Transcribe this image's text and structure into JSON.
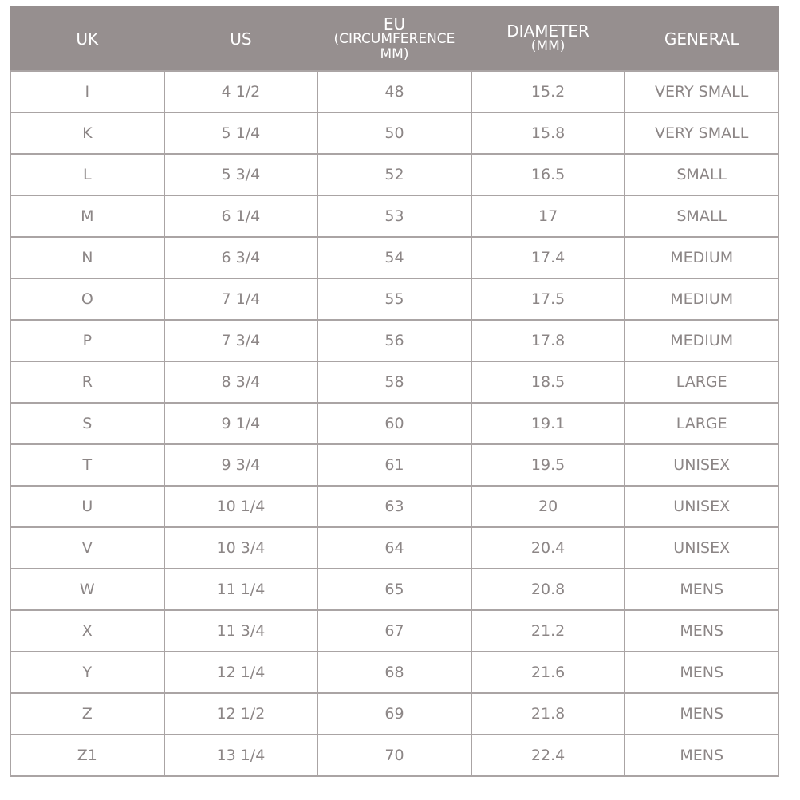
{
  "header": {
    "uk": "UK",
    "us": "US",
    "eu_line1": "EU",
    "eu_line2": "(CIRCUMFERENCE",
    "eu_line3": "MM)",
    "diameter_line1": "DIAMETER",
    "diameter_line2": "(MM)",
    "general": "GENERAL"
  },
  "colors": {
    "header_bg": "#968f8f",
    "header_text": "#ffffff",
    "cell_text": "#8c8686",
    "border": "#aaa4a4"
  },
  "rows": [
    [
      "I",
      "4 1/2",
      "48",
      "15.2",
      "VERY SMALL"
    ],
    [
      "K",
      "5 1/4",
      "50",
      "15.8",
      "VERY SMALL"
    ],
    [
      "L",
      "5 3/4",
      "52",
      "16.5",
      "SMALL"
    ],
    [
      "M",
      "6 1/4",
      "53",
      "17",
      "SMALL"
    ],
    [
      "N",
      "6 3/4",
      "54",
      "17.4",
      "MEDIUM"
    ],
    [
      "O",
      "7 1/4",
      "55",
      "17.5",
      "MEDIUM"
    ],
    [
      "P",
      "7 3/4",
      "56",
      "17.8",
      "MEDIUM"
    ],
    [
      "R",
      "8 3/4",
      "58",
      "18.5",
      "LARGE"
    ],
    [
      "S",
      "9 1/4",
      "60",
      "19.1",
      "LARGE"
    ],
    [
      "T",
      "9 3/4",
      "61",
      "19.5",
      "UNISEX"
    ],
    [
      "U",
      "10 1/4",
      "63",
      "20",
      "UNISEX"
    ],
    [
      "V",
      "10 3/4",
      "64",
      "20.4",
      "UNISEX"
    ],
    [
      "W",
      "11 1/4",
      "65",
      "20.8",
      "MENS"
    ],
    [
      "X",
      "11 3/4",
      "67",
      "21.2",
      "MENS"
    ],
    [
      "Y",
      "12 1/4",
      "68",
      "21.6",
      "MENS"
    ],
    [
      "Z",
      "12 1/2",
      "69",
      "21.8",
      "MENS"
    ],
    [
      "Z1",
      "13 1/4",
      "70",
      "22.4",
      "MENS"
    ]
  ]
}
